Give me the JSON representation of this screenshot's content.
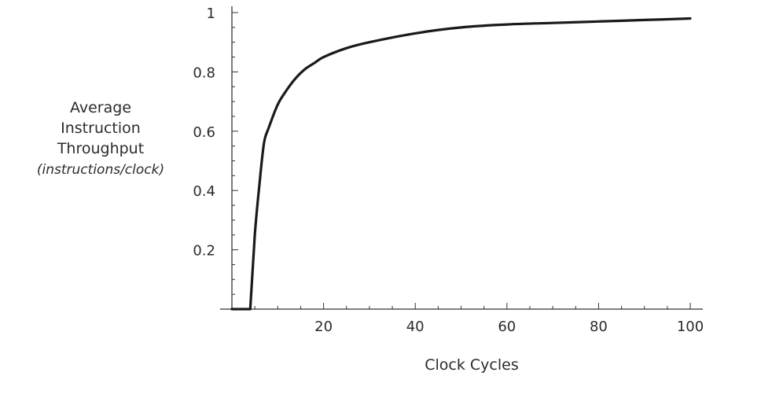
{
  "chart_data": {
    "type": "line",
    "title": "",
    "xlabel": "Clock Cycles",
    "ylabel_lines": [
      "Average",
      "Instruction",
      "Throughput",
      "(instructions/clock)"
    ],
    "xlim": [
      0,
      100
    ],
    "ylim": [
      0,
      1
    ],
    "x_ticks": [
      20,
      40,
      60,
      80,
      100
    ],
    "y_ticks": [
      0.2,
      0.4,
      0.6,
      0.8,
      1
    ],
    "x_tick_labels": [
      "20",
      "40",
      "60",
      "80",
      "100"
    ],
    "y_tick_labels": [
      "0.2",
      "0.4",
      "0.6",
      "0.8",
      "1"
    ],
    "grid": false,
    "series": [
      {
        "color": "#1a1a1a",
        "x": [
          0,
          2,
          3,
          4,
          5,
          6,
          7,
          8,
          10,
          12,
          14,
          16,
          18,
          20,
          25,
          30,
          40,
          50,
          60,
          70,
          80,
          90,
          100
        ],
        "y": [
          0,
          0,
          0,
          0,
          0.25,
          0.42,
          0.56,
          0.61,
          0.69,
          0.74,
          0.78,
          0.81,
          0.83,
          0.85,
          0.88,
          0.9,
          0.93,
          0.95,
          0.96,
          0.965,
          0.97,
          0.975,
          0.98
        ]
      }
    ]
  }
}
